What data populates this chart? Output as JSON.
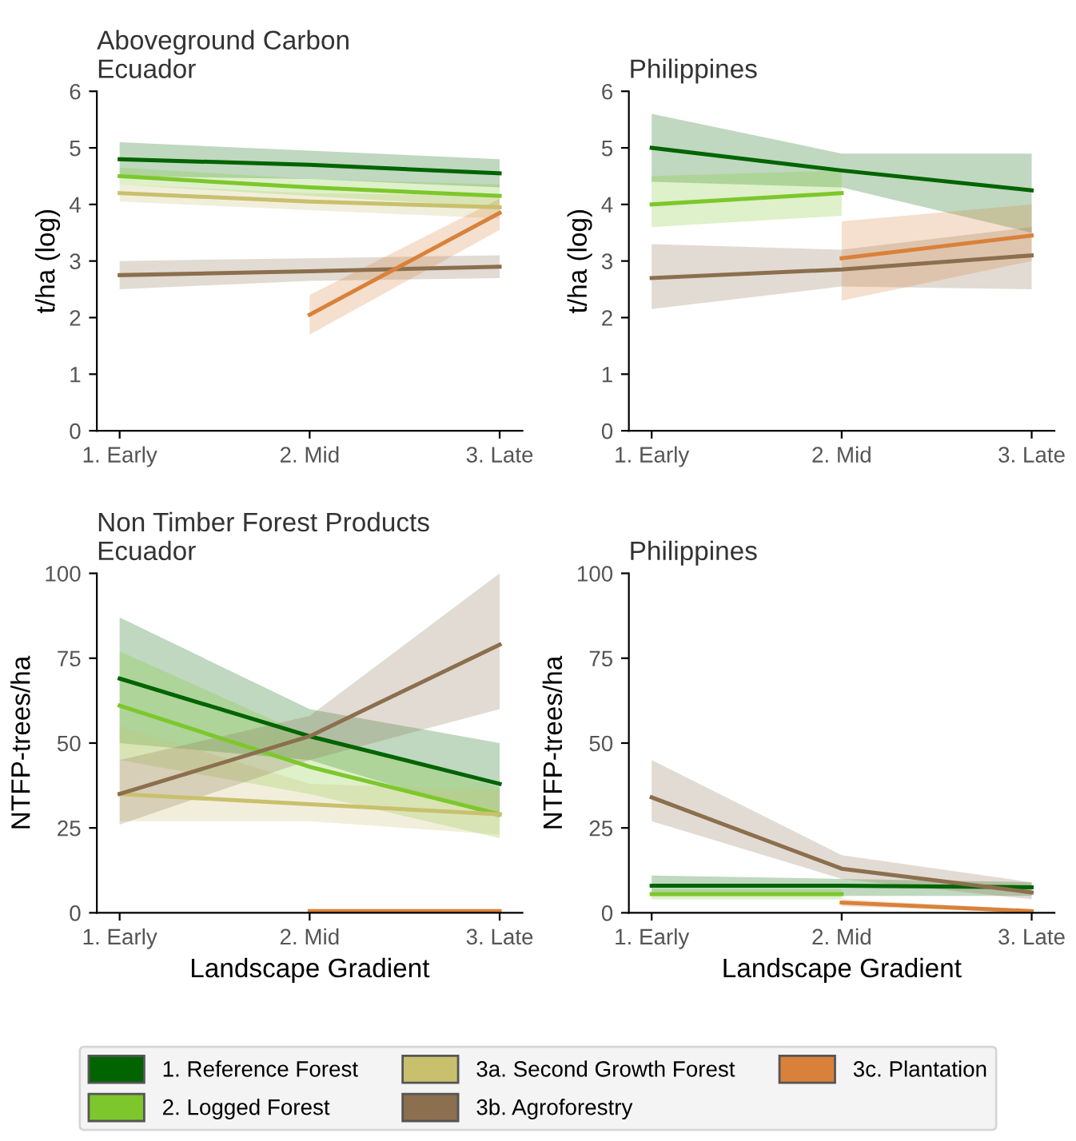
{
  "chart_data": [
    {
      "type": "line",
      "legend": "bottom",
      "title": "Aboveground Carbon",
      "subtitle": "Ecuador",
      "ylabel": "t/ha (log)",
      "categories": [
        "1. Early",
        "2. Mid",
        "3. Late"
      ],
      "ylim": [
        0,
        6
      ],
      "yticks": [
        0,
        1,
        2,
        3,
        4,
        5,
        6
      ],
      "grid": false,
      "series": [
        {
          "name": "1. Reference Forest",
          "color": "#006400",
          "values": [
            4.8,
            4.7,
            4.55
          ],
          "lower": [
            4.5,
            4.45,
            4.3
          ],
          "upper": [
            5.1,
            4.95,
            4.8
          ]
        },
        {
          "name": "2. Logged Forest",
          "color": "#7dc72c",
          "values": [
            4.5,
            4.3,
            4.15
          ],
          "lower": [
            4.35,
            4.15,
            3.95
          ],
          "upper": [
            4.65,
            4.45,
            4.35
          ]
        },
        {
          "name": "3a. Second Growth Forest",
          "color": "#c9c06e",
          "values": [
            4.2,
            4.05,
            3.95
          ],
          "lower": [
            4.05,
            3.9,
            3.75
          ],
          "upper": [
            4.35,
            4.2,
            4.15
          ]
        },
        {
          "name": "3b. Agroforestry",
          "color": "#8b6f4e",
          "values": [
            2.75,
            2.82,
            2.9
          ],
          "lower": [
            2.5,
            2.65,
            2.7
          ],
          "upper": [
            3.0,
            3.05,
            3.1
          ]
        },
        {
          "name": "3c. Plantation",
          "color": "#d9813a",
          "values": [
            null,
            2.05,
            3.85
          ],
          "lower": [
            null,
            1.7,
            3.55
          ],
          "upper": [
            null,
            2.4,
            4.1
          ]
        }
      ]
    },
    {
      "type": "line",
      "legend": "bottom",
      "title": "Philippines",
      "ylabel": "t/ha (log)",
      "categories": [
        "1. Early",
        "2. Mid",
        "3. Late"
      ],
      "ylim": [
        0,
        6
      ],
      "yticks": [
        0,
        1,
        2,
        3,
        4,
        5,
        6
      ],
      "grid": false,
      "series": [
        {
          "name": "1. Reference Forest",
          "color": "#006400",
          "values": [
            5.0,
            4.6,
            4.25
          ],
          "lower": [
            4.4,
            4.3,
            3.5
          ],
          "upper": [
            5.6,
            4.9,
            4.9
          ]
        },
        {
          "name": "2. Logged Forest",
          "color": "#7dc72c",
          "values": [
            4.0,
            4.2,
            null
          ],
          "lower": [
            3.6,
            3.8,
            null
          ],
          "upper": [
            4.5,
            4.6,
            null
          ]
        },
        {
          "name": "3b. Agroforestry",
          "color": "#8b6f4e",
          "values": [
            2.7,
            2.85,
            3.1
          ],
          "lower": [
            2.15,
            2.55,
            2.5
          ],
          "upper": [
            3.3,
            3.2,
            3.6
          ]
        },
        {
          "name": "3c. Plantation",
          "color": "#d9813a",
          "values": [
            null,
            3.05,
            3.45
          ],
          "lower": [
            null,
            2.3,
            3.0
          ],
          "upper": [
            null,
            3.7,
            4.0
          ]
        }
      ]
    },
    {
      "type": "line",
      "legend": "bottom",
      "title": "Non Timber Forest Products",
      "subtitle": "Ecuador",
      "ylabel": "NTFP-trees/ha",
      "xlabel": "Landscape Gradient",
      "categories": [
        "1. Early",
        "2. Mid",
        "3. Late"
      ],
      "ylim": [
        0,
        100
      ],
      "yticks": [
        0,
        25,
        50,
        75,
        100
      ],
      "grid": false,
      "series": [
        {
          "name": "1. Reference Forest",
          "color": "#006400",
          "values": [
            69,
            52,
            38
          ],
          "lower": [
            50,
            45,
            28
          ],
          "upper": [
            87,
            60,
            50
          ]
        },
        {
          "name": "2. Logged Forest",
          "color": "#7dc72c",
          "values": [
            61,
            43,
            29
          ],
          "lower": [
            45,
            35,
            22
          ],
          "upper": [
            77,
            52,
            37
          ]
        },
        {
          "name": "3a. Second Growth Forest",
          "color": "#c9c06e",
          "values": [
            35,
            32,
            29
          ],
          "lower": [
            27,
            27,
            23
          ],
          "upper": [
            55,
            38,
            36
          ]
        },
        {
          "name": "3b. Agroforestry",
          "color": "#8b6f4e",
          "values": [
            35,
            52,
            79
          ],
          "lower": [
            26,
            45,
            60
          ],
          "upper": [
            45,
            58,
            100
          ]
        },
        {
          "name": "3c. Plantation",
          "color": "#d9813a",
          "values": [
            null,
            0.5,
            0.5
          ]
        }
      ]
    },
    {
      "type": "line",
      "title": "Philippines",
      "ylabel": "NTFP-trees/ha",
      "xlabel": "Landscape Gradient",
      "categories": [
        "1. Early",
        "2. Mid",
        "3. Late"
      ],
      "ylim": [
        0,
        100
      ],
      "yticks": [
        0,
        25,
        50,
        75,
        100
      ],
      "grid": false,
      "legend": "bottom",
      "series": [
        {
          "name": "1. Reference Forest",
          "color": "#006400",
          "values": [
            8,
            8,
            7.5
          ],
          "lower": [
            5,
            5,
            5
          ],
          "upper": [
            11,
            10,
            9
          ]
        },
        {
          "name": "2. Logged Forest",
          "color": "#7dc72c",
          "values": [
            5.5,
            5.5,
            null
          ],
          "lower": [
            4,
            4,
            null
          ],
          "upper": [
            7,
            7,
            null
          ]
        },
        {
          "name": "3b. Agroforestry",
          "color": "#8b6f4e",
          "values": [
            34,
            13,
            6
          ],
          "lower": [
            27,
            10,
            4
          ],
          "upper": [
            45,
            17,
            9
          ]
        },
        {
          "name": "3c. Plantation",
          "color": "#d9813a",
          "values": [
            null,
            3,
            0.5
          ],
          "lower": [
            null,
            2,
            0
          ],
          "upper": [
            null,
            4,
            1
          ]
        }
      ]
    }
  ]
}
